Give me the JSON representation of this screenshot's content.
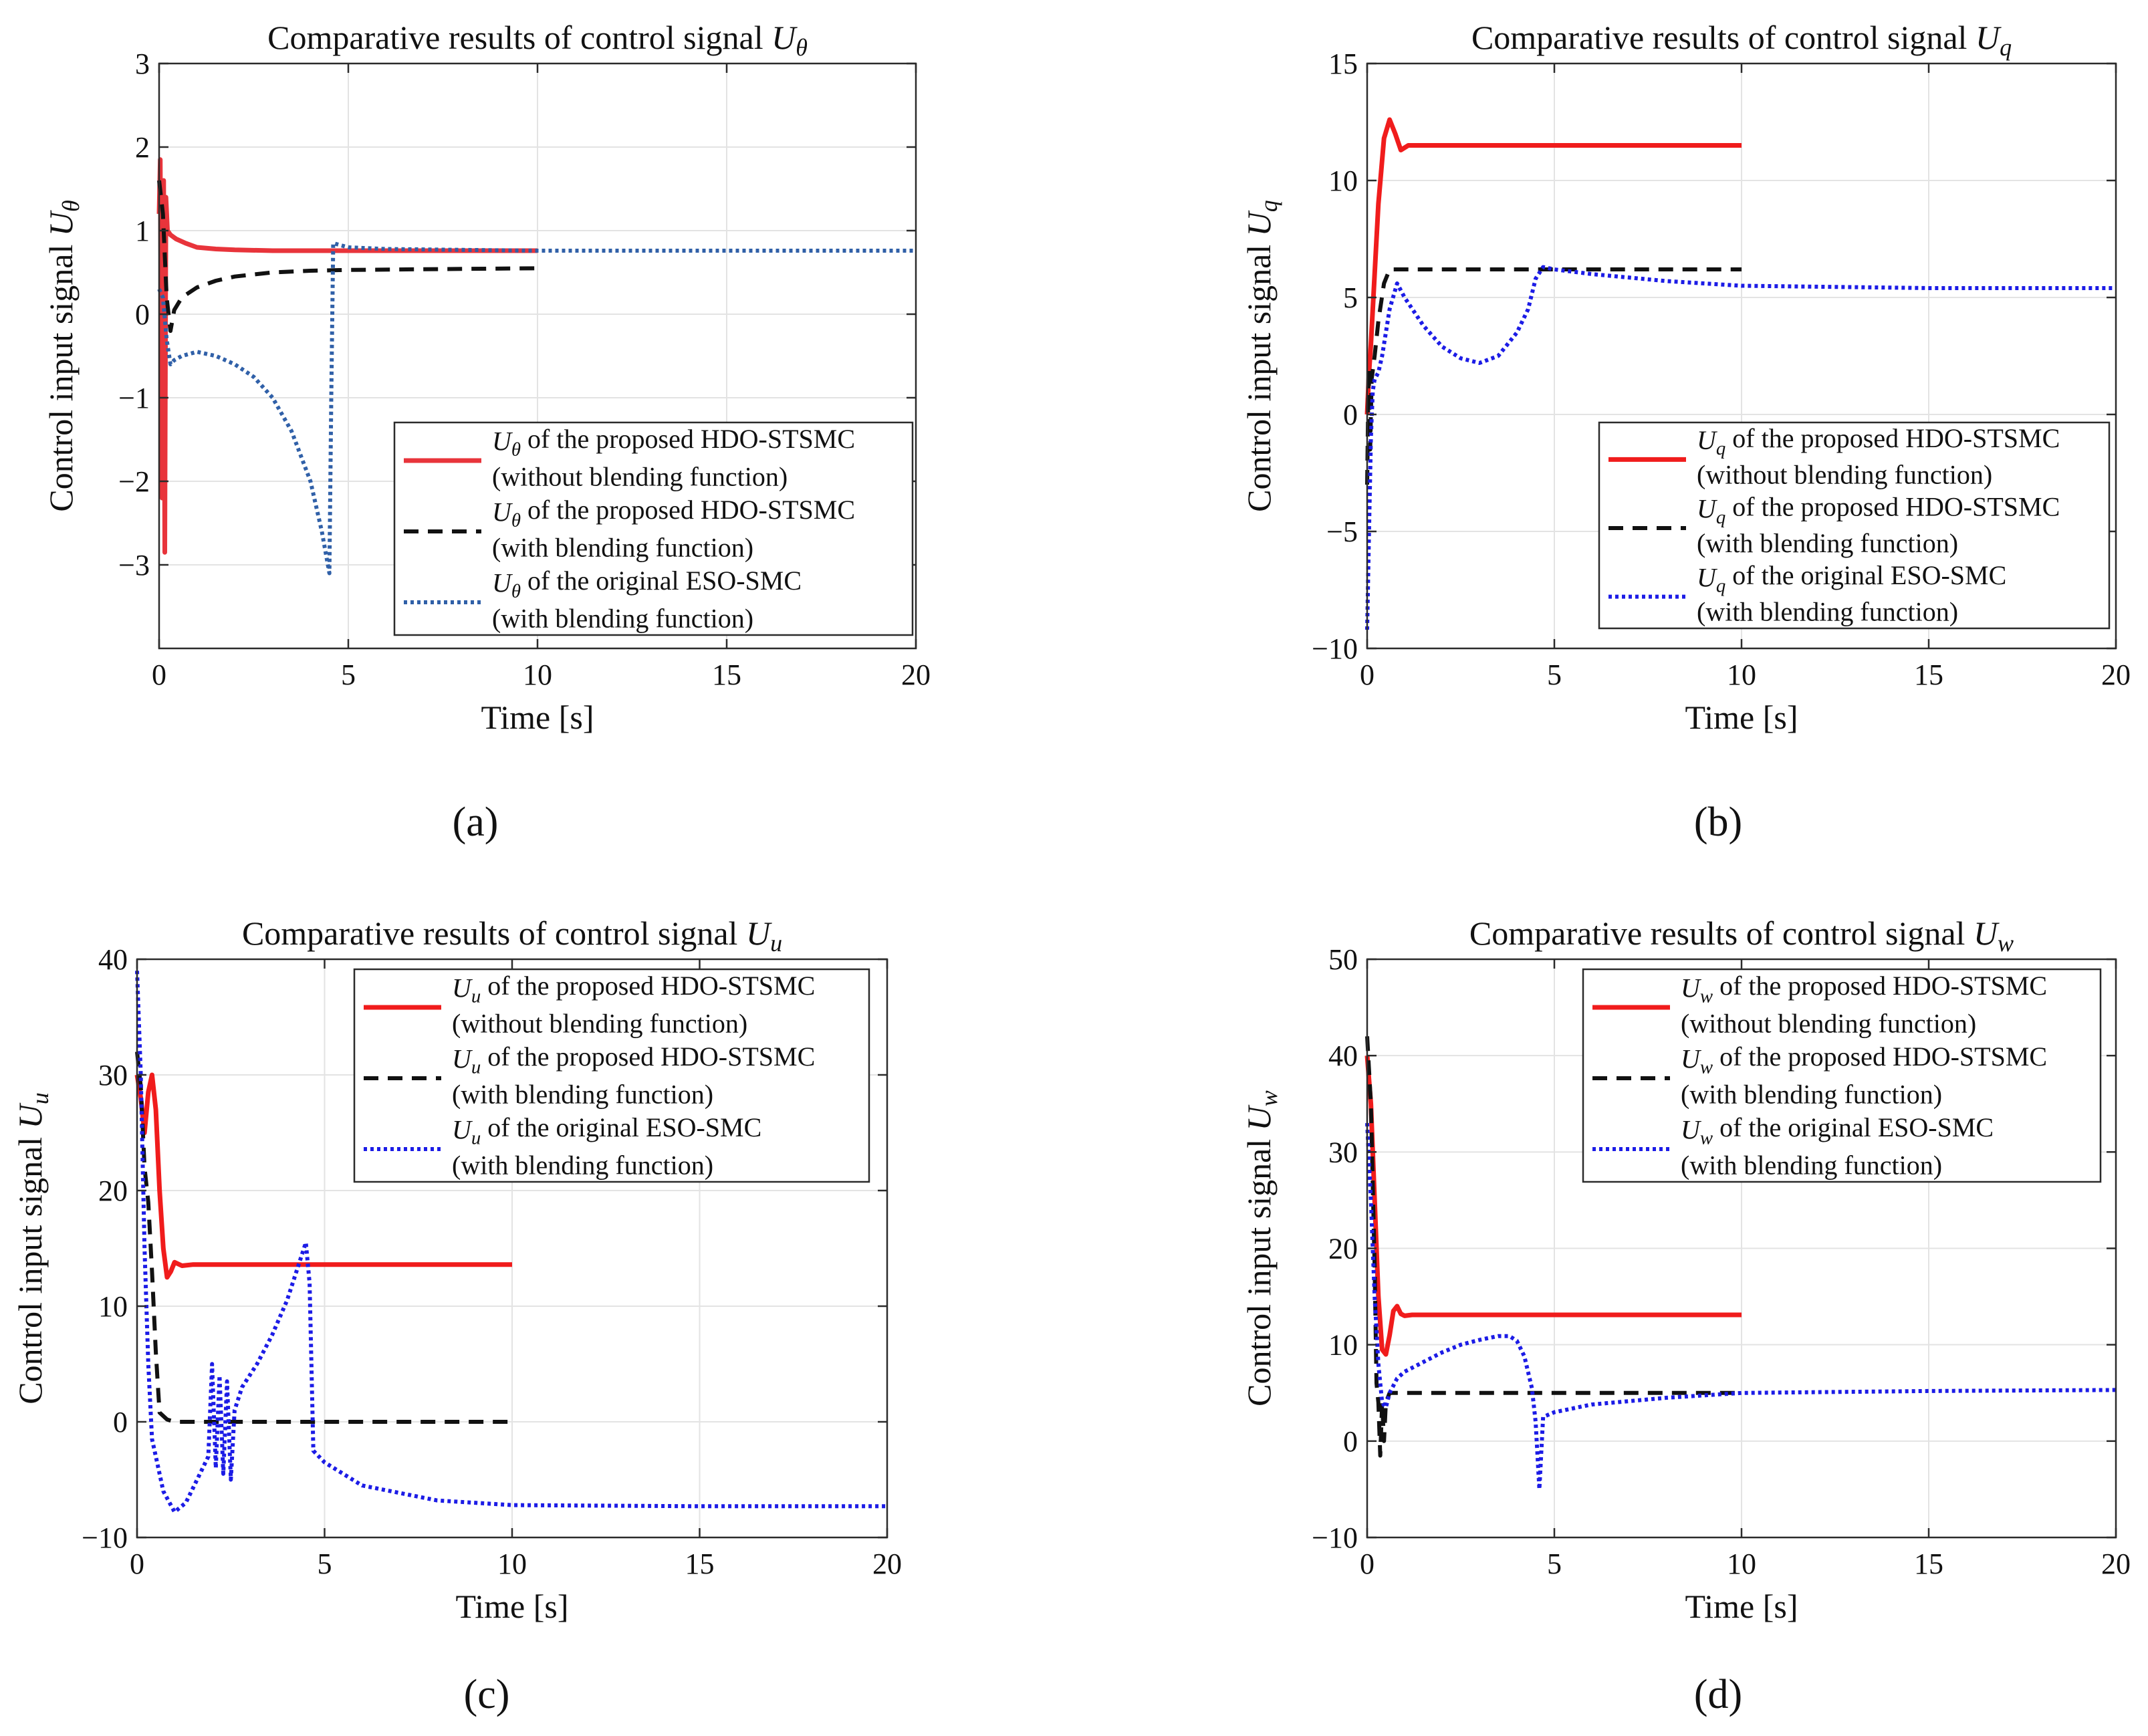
{
  "chart_data": [
    {
      "type": "line",
      "panel": "a",
      "panel_label": "(a)",
      "title": "Comparative results of control signal Uθ",
      "xlabel": "Time [s]",
      "ylabel": "Control input signal Uθ",
      "xlim": [
        0,
        20
      ],
      "ylim": [
        -4,
        3
      ],
      "xticks": [
        0,
        5,
        10,
        15,
        20
      ],
      "yticks": [
        3,
        2,
        1,
        0,
        -1,
        -2,
        -3
      ],
      "ytick_labels": [
        "3",
        "2",
        "1",
        "0",
        "−1",
        "−2",
        "−3"
      ],
      "grid": true,
      "legend_position": "lower-right",
      "series": [
        {
          "name": "Uθ of the proposed HDO-STSMC",
          "name_line2": "(without blending function)",
          "color": "#e8343b",
          "style": "solid",
          "x": [
            0,
            0.03,
            0.08,
            0.12,
            0.15,
            0.18,
            0.22,
            0.3,
            0.45,
            0.7,
            1.0,
            1.5,
            2.0,
            3.0,
            4.0,
            10.0
          ],
          "y": [
            1.2,
            1.85,
            -2.2,
            1.6,
            -2.85,
            1.4,
            1.0,
            0.95,
            0.9,
            0.85,
            0.8,
            0.78,
            0.77,
            0.76,
            0.76,
            0.76
          ]
        },
        {
          "name": "Uθ of the proposed HDO-STSMC",
          "name_line2": "(with blending function)",
          "color": "#111111",
          "style": "dashed",
          "x": [
            0,
            0.1,
            0.2,
            0.3,
            0.4,
            0.6,
            1.0,
            1.5,
            2.0,
            3.0,
            4.0,
            5.0,
            10.0
          ],
          "y": [
            1.6,
            1.2,
            0.2,
            -0.2,
            0.05,
            0.2,
            0.32,
            0.4,
            0.45,
            0.5,
            0.52,
            0.53,
            0.55
          ]
        },
        {
          "name": "Uθ of the original ESO-SMC",
          "name_line2": "(with blending function)",
          "color": "#3060a8",
          "style": "dotted",
          "x": [
            0,
            0.1,
            0.2,
            0.3,
            0.4,
            0.6,
            1.0,
            1.5,
            2.0,
            2.5,
            3.0,
            3.5,
            4.0,
            4.3,
            4.5,
            4.55,
            4.6,
            5.0,
            6.0,
            8.0,
            10.0,
            15.0,
            20.0
          ],
          "y": [
            0.3,
            0.2,
            -0.3,
            -0.6,
            -0.55,
            -0.5,
            -0.45,
            -0.5,
            -0.6,
            -0.75,
            -1.0,
            -1.4,
            -2.0,
            -2.6,
            -3.1,
            -1.0,
            0.85,
            0.8,
            0.78,
            0.77,
            0.76,
            0.76,
            0.76
          ]
        }
      ]
    },
    {
      "type": "line",
      "panel": "b",
      "panel_label": "(b)",
      "title": "Comparative results of control signal Uq",
      "xlabel": "Time [s]",
      "ylabel": "Control input signal Uq",
      "xlim": [
        0,
        20
      ],
      "ylim": [
        -10,
        15
      ],
      "xticks": [
        0,
        5,
        10,
        15,
        20
      ],
      "yticks": [
        15,
        10,
        5,
        0,
        -5,
        -10
      ],
      "ytick_labels": [
        "15",
        "10",
        "5",
        "0",
        "−5",
        "−10"
      ],
      "grid": true,
      "legend_position": "lower-right",
      "series": [
        {
          "name": "Uq of the proposed HDO-STSMC",
          "name_line2": "(without blending function)",
          "color": "#f01c1c",
          "style": "solid",
          "x": [
            0,
            0.05,
            0.1,
            0.2,
            0.3,
            0.45,
            0.6,
            0.75,
            0.9,
            1.1,
            1.4,
            2.0,
            5.0,
            10.0
          ],
          "y": [
            0,
            1.8,
            3.0,
            6.0,
            9.0,
            11.8,
            12.6,
            12.0,
            11.3,
            11.5,
            11.5,
            11.5,
            11.5,
            11.5
          ]
        },
        {
          "name": "Uq of the proposed HDO-STSMC",
          "name_line2": "(with blending function)",
          "color": "#111111",
          "style": "dashed",
          "x": [
            0,
            0.04,
            0.08,
            0.12,
            0.2,
            0.3,
            0.45,
            0.6,
            1.0,
            2.0,
            5.0,
            10.0
          ],
          "y": [
            -3.0,
            2.0,
            -1.5,
            1.5,
            2.5,
            4.0,
            5.6,
            6.2,
            6.2,
            6.2,
            6.2,
            6.2
          ]
        },
        {
          "name": "Uq of the original ESO-SMC",
          "name_line2": "(with blending function)",
          "color": "#1c1ce6",
          "style": "dotted",
          "x": [
            0,
            0.05,
            0.1,
            0.15,
            0.2,
            0.3,
            0.4,
            0.6,
            0.8,
            1.0,
            1.5,
            2.0,
            2.5,
            3.0,
            3.5,
            4.0,
            4.3,
            4.5,
            4.7,
            5.0,
            6.0,
            8.0,
            10.0,
            15.0,
            20.0
          ],
          "y": [
            -9.2,
            -5.0,
            -1.0,
            1.0,
            1.5,
            1.8,
            2.5,
            4.5,
            5.6,
            5.0,
            3.8,
            2.9,
            2.4,
            2.2,
            2.5,
            3.5,
            4.5,
            5.8,
            6.3,
            6.2,
            6.0,
            5.7,
            5.5,
            5.4,
            5.4
          ]
        }
      ]
    },
    {
      "type": "line",
      "panel": "c",
      "panel_label": "(c)",
      "title": "Comparative results of control signal Uu",
      "xlabel": "Time [s]",
      "ylabel": "Control input signal Uu",
      "xlim": [
        0,
        20
      ],
      "ylim": [
        -10,
        40
      ],
      "xticks": [
        0,
        5,
        10,
        15,
        20
      ],
      "yticks": [
        40,
        30,
        20,
        10,
        0,
        -10
      ],
      "ytick_labels": [
        "40",
        "30",
        "20",
        "10",
        "0",
        "−10"
      ],
      "grid": true,
      "legend_position": "top-right",
      "series": [
        {
          "name": "Uu of the proposed HDO-STSMC",
          "name_line2": "(without blending function)",
          "color": "#f01c1c",
          "style": "solid",
          "x": [
            0,
            0.1,
            0.2,
            0.3,
            0.4,
            0.5,
            0.6,
            0.7,
            0.8,
            0.9,
            1.0,
            1.2,
            1.5,
            2.0,
            5.0,
            10.0
          ],
          "y": [
            30,
            28,
            25,
            28.5,
            30,
            27,
            20,
            15,
            12.5,
            13,
            13.8,
            13.5,
            13.6,
            13.6,
            13.6,
            13.6
          ]
        },
        {
          "name": "Uu of the proposed HDO-STSMC",
          "name_line2": "(with blending function)",
          "color": "#111111",
          "style": "dashed",
          "x": [
            0,
            0.1,
            0.2,
            0.3,
            0.4,
            0.5,
            0.6,
            0.8,
            1.0,
            2.0,
            5.0,
            10.0
          ],
          "y": [
            32,
            29,
            22,
            19,
            13,
            6,
            0.8,
            0.2,
            0,
            0,
            0,
            0
          ]
        },
        {
          "name": "Uu of the original ESO-SMC",
          "name_line2": "(with blending function)",
          "color": "#1c1ce6",
          "style": "dotted",
          "x": [
            0,
            0.1,
            0.2,
            0.3,
            0.4,
            0.5,
            0.7,
            1.0,
            1.3,
            1.6,
            1.9,
            2.0,
            2.1,
            2.2,
            2.3,
            2.4,
            2.5,
            2.6,
            2.8,
            3.2,
            3.6,
            4.0,
            4.3,
            4.5,
            4.6,
            4.7,
            5.0,
            6.0,
            8.0,
            10.0,
            15.0,
            20.0
          ],
          "y": [
            39,
            30,
            15,
            5,
            -1.5,
            -3,
            -6,
            -7.8,
            -7,
            -5,
            -3,
            5,
            -4,
            4,
            -4.5,
            3.5,
            -5,
            1,
            3,
            5,
            7.5,
            10.5,
            13.5,
            15.5,
            12,
            -2.5,
            -3.5,
            -5.5,
            -6.8,
            -7.2,
            -7.3,
            -7.3
          ]
        }
      ]
    },
    {
      "type": "line",
      "panel": "d",
      "panel_label": "(d)",
      "title": "Comparative results of control signal Uw",
      "xlabel": "Time [s]",
      "ylabel": "Control input signal Uw",
      "xlim": [
        0,
        20
      ],
      "ylim": [
        -10,
        50
      ],
      "xticks": [
        0,
        5,
        10,
        15,
        20
      ],
      "yticks": [
        50,
        40,
        30,
        20,
        10,
        0,
        -10
      ],
      "ytick_labels": [
        "50",
        "40",
        "30",
        "20",
        "10",
        "0",
        "−10"
      ],
      "grid": true,
      "legend_position": "top-right",
      "series": [
        {
          "name": "Uw of the proposed HDO-STSMC",
          "name_line2": "(without blending function)",
          "color": "#f01c1c",
          "style": "solid",
          "x": [
            0,
            0.1,
            0.2,
            0.3,
            0.4,
            0.5,
            0.6,
            0.7,
            0.8,
            0.9,
            1.0,
            1.2,
            1.5,
            2.0,
            5.0,
            10.0
          ],
          "y": [
            40,
            35,
            25,
            15,
            9.5,
            9,
            11,
            13.5,
            14,
            13.2,
            13,
            13.1,
            13.1,
            13.1,
            13.1,
            13.1
          ]
        },
        {
          "name": "Uw of the proposed HDO-STSMC",
          "name_line2": "(with blending function)",
          "color": "#111111",
          "style": "dashed",
          "x": [
            0,
            0.1,
            0.2,
            0.25,
            0.3,
            0.35,
            0.4,
            0.45,
            0.5,
            0.6,
            0.8,
            1.0,
            2.0,
            5.0,
            10.0
          ],
          "y": [
            42,
            35,
            18,
            6,
            4,
            -1.5,
            4,
            0,
            4,
            5,
            5,
            5,
            5,
            5,
            5
          ]
        },
        {
          "name": "Uw of the original ESO-SMC",
          "name_line2": "(with blending function)",
          "color": "#1c1ce6",
          "style": "dotted",
          "x": [
            0,
            0.1,
            0.2,
            0.3,
            0.4,
            0.5,
            0.6,
            0.8,
            1.0,
            1.5,
            2.0,
            2.5,
            3.0,
            3.5,
            3.8,
            4.0,
            4.2,
            4.4,
            4.5,
            4.6,
            4.7,
            5.0,
            6.0,
            8.0,
            10.0,
            15.0,
            20.0
          ],
          "y": [
            33,
            25,
            15,
            8,
            4,
            3.5,
            5,
            6.5,
            7.2,
            8.2,
            9.2,
            10.0,
            10.5,
            10.9,
            10.9,
            10.4,
            8.8,
            5.5,
            2.0,
            -5,
            2.5,
            3.0,
            3.8,
            4.5,
            5.0,
            5.2,
            5.3
          ]
        }
      ]
    }
  ]
}
